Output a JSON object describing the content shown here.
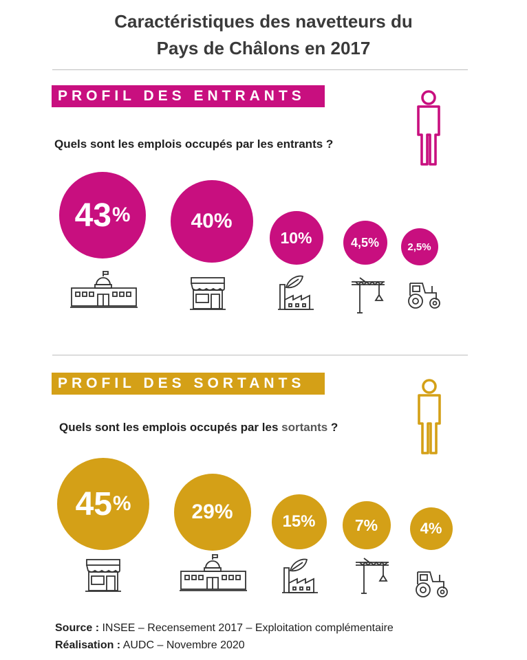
{
  "title_line1": "Caractéristiques des navetteurs du",
  "title_line2": "Pays de Châlons en 2017",
  "colors": {
    "entrants": "#c80f7f",
    "sortants": "#d4a017",
    "text": "#1f1f1f"
  },
  "entrants": {
    "banner": "PROFIL DES ENTRANTS",
    "question": "Quels sont les emplois occupés par les entrants ?",
    "items": [
      {
        "num": "43",
        "unit": "%",
        "value": 43,
        "icon": "public-building-icon"
      },
      {
        "num": "40%",
        "unit": "",
        "value": 40,
        "icon": "shop-icon"
      },
      {
        "num": "10%",
        "unit": "",
        "value": 10,
        "icon": "factory-icon"
      },
      {
        "num": "4,5%",
        "unit": "",
        "value": 4.5,
        "icon": "crane-icon"
      },
      {
        "num": "2,5%",
        "unit": "",
        "value": 2.5,
        "icon": "tractor-icon"
      }
    ]
  },
  "sortants": {
    "banner": "PROFIL DES SORTANTS",
    "question_prefix": "Quels sont les emplois occupés par les ",
    "question_highlight": "sortants",
    "question_suffix": " ?",
    "items": [
      {
        "num": "45",
        "unit": "%",
        "value": 45,
        "icon": "shop-icon"
      },
      {
        "num": "29%",
        "unit": "",
        "value": 29,
        "icon": "public-building-icon"
      },
      {
        "num": "15%",
        "unit": "",
        "value": 15,
        "icon": "factory-icon"
      },
      {
        "num": "7%",
        "unit": "",
        "value": 7,
        "icon": "crane-icon"
      },
      {
        "num": "4%",
        "unit": "",
        "value": 4,
        "icon": "tractor-icon"
      }
    ]
  },
  "footer": {
    "source_label": "Source :",
    "source_text": " INSEE – Recensement 2017 – Exploitation complémentaire",
    "realisation_label": "Réalisation :",
    "realisation_text": " AUDC – Novembre 2020"
  }
}
